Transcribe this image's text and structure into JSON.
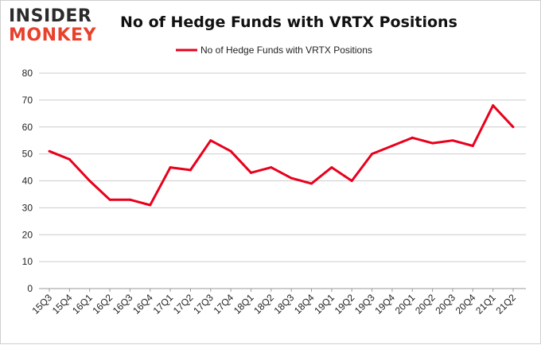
{
  "logo": {
    "top": "INSIDER",
    "bottom": "MONKEY"
  },
  "colors": {
    "line": "#e8001c",
    "grid": "#cccccc",
    "logo_accent": "#e8412c"
  },
  "chart_data": {
    "type": "line",
    "title": "No of Hedge Funds with VRTX Positions",
    "xlabel": "",
    "ylabel": "",
    "ylim": [
      0,
      80
    ],
    "yticks": [
      0,
      10,
      20,
      30,
      40,
      50,
      60,
      70,
      80
    ],
    "grid": true,
    "legend_position": "top",
    "categories": [
      "15Q3",
      "15Q4",
      "16Q1",
      "16Q2",
      "16Q3",
      "16Q4",
      "17Q1",
      "17Q2",
      "17Q3",
      "17Q4",
      "18Q1",
      "18Q2",
      "18Q3",
      "18Q4",
      "19Q1",
      "19Q2",
      "19Q3",
      "19Q4",
      "20Q1",
      "20Q2",
      "20Q3",
      "20Q4",
      "21Q1",
      "21Q2"
    ],
    "series": [
      {
        "name": "No of Hedge Funds with VRTX Positions",
        "values": [
          51,
          48,
          40,
          33,
          33,
          31,
          45,
          44,
          55,
          51,
          43,
          45,
          41,
          39,
          45,
          40,
          50,
          53,
          56,
          54,
          55,
          53,
          68,
          60
        ]
      }
    ]
  }
}
